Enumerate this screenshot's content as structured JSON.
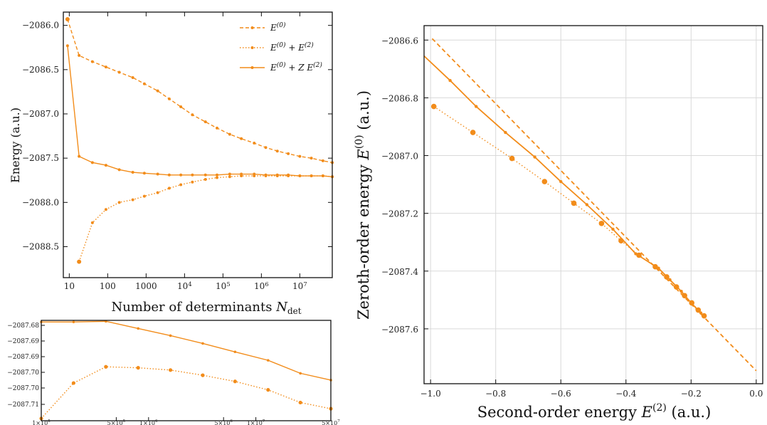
{
  "colors": {
    "series": "#F28C1A",
    "axis": "#111111",
    "grid": "#d9d9d9"
  },
  "chart_data": [
    {
      "id": "top-left",
      "type": "line",
      "xscale": "log",
      "xlabel_text": "Number of determinants ",
      "xlabel_sym": "N",
      "xlabel_sub": "det",
      "ylabel": "Energy (a.u.)",
      "xlim": [
        7,
        70000000
      ],
      "ylim": [
        -2088.85,
        -2085.85
      ],
      "xticks": [
        "10",
        "100",
        "1000",
        "10^4",
        "10^5",
        "10^6",
        "10^7"
      ],
      "yticks": [
        "−2086.0",
        "−2086.5",
        "−2087.0",
        "−2087.5",
        "−2088.0",
        "−2088.5"
      ],
      "legend": [
        {
          "text": "E^(0)",
          "style": "dashed"
        },
        {
          "text": "E^(0) + E^(2)",
          "style": "dotted"
        },
        {
          "text": "E^(0) + Z E^(2)",
          "style": "solid"
        }
      ],
      "x": [
        9,
        18,
        40,
        90,
        200,
        450,
        900,
        2000,
        4000,
        8000,
        16000,
        35000,
        70000,
        150000,
        300000,
        650000,
        1300000,
        2600000,
        5000000,
        10000000,
        20000000,
        40000000,
        70000000
      ],
      "series": [
        {
          "name": "E^(0)",
          "style": "dashed",
          "values": [
            -2085.93,
            -2086.34,
            -2086.41,
            -2086.47,
            -2086.53,
            -2086.59,
            -2086.66,
            -2086.74,
            -2086.83,
            -2086.92,
            -2087.01,
            -2087.09,
            -2087.16,
            -2087.23,
            -2087.28,
            -2087.33,
            -2087.38,
            -2087.42,
            -2087.45,
            -2087.48,
            -2087.5,
            -2087.53,
            -2087.55
          ]
        },
        {
          "name": "E^(0) + E^(2)",
          "style": "dotted",
          "values": [
            null,
            -2088.67,
            -2088.23,
            -2088.08,
            -2088.0,
            -2087.97,
            -2087.93,
            -2087.89,
            -2087.84,
            -2087.8,
            -2087.77,
            -2087.74,
            -2087.72,
            -2087.71,
            -2087.7,
            -2087.7,
            -2087.7,
            -2087.7,
            -2087.7,
            -2087.7,
            -2087.7,
            -2087.7,
            -2087.71
          ]
        },
        {
          "name": "E^(0) + Z E^(2)",
          "style": "solid",
          "values": [
            -2086.23,
            -2087.48,
            -2087.55,
            -2087.58,
            -2087.63,
            -2087.66,
            -2087.67,
            -2087.68,
            -2087.69,
            -2087.69,
            -2087.69,
            -2087.69,
            -2087.69,
            -2087.68,
            -2087.68,
            -2087.68,
            -2087.69,
            -2087.69,
            -2087.69,
            -2087.7,
            -2087.7,
            -2087.7,
            -2087.71
          ]
        }
      ]
    },
    {
      "id": "bottom-left",
      "type": "line",
      "xscale": "log",
      "xlim": [
        100000,
        50000000
      ],
      "ylim": [
        -2087.7104,
        -2087.6795
      ],
      "xticks": [
        "1×10^5",
        "5×10^5",
        "1×10^6",
        "5×10^6",
        "1×10^7",
        "5×10^7"
      ],
      "yticks": [
        "−2087.68",
        "−2087.69",
        "−2087.69",
        "−2087.70",
        "−2087.70",
        "−2087.71"
      ],
      "x": [
        100000,
        200000,
        400000,
        800000,
        1600000,
        3200000,
        6400000,
        13000000,
        26000000,
        50000000
      ],
      "series": [
        {
          "name": "E^(0) + Z E^(2)",
          "style": "solid",
          "values": [
            -2087.68,
            -2087.68,
            -2087.6798,
            -2087.682,
            -2087.6842,
            -2087.6866,
            -2087.6892,
            -2087.6918,
            -2087.6958,
            -2087.6979
          ]
        },
        {
          "name": "E^(0) + E^(2)",
          "style": "dotted",
          "values": [
            -2087.7097,
            -2087.6988,
            -2087.6938,
            -2087.6941,
            -2087.6948,
            -2087.6964,
            -2087.6983,
            -2087.7009,
            -2087.7048,
            -2087.7067
          ]
        }
      ]
    },
    {
      "id": "right",
      "type": "scatter",
      "xlabel_text": "Second-order energy ",
      "xlabel_sym": "E",
      "xlabel_sup": "(2)",
      "xlabel_unit": " (a.u.)",
      "ylabel_text": "Zeroth-order energy ",
      "ylabel_sym": "E",
      "ylabel_sup": "(0)",
      "ylabel_unit": " (a.u.)",
      "xlim": [
        -1.02,
        0.02
      ],
      "ylim": [
        -2087.79,
        -2086.55
      ],
      "grid": true,
      "xticks": [
        -1.0,
        -0.8,
        -0.6,
        -0.4,
        -0.2,
        0.0
      ],
      "xticklabels": [
        "−1.0",
        "−0.8",
        "−0.6",
        "−0.4",
        "−0.2",
        "0.0"
      ],
      "yticks": [
        -2086.6,
        -2086.8,
        -2087.0,
        -2087.2,
        -2087.4,
        -2087.6
      ],
      "yticklabels": [
        "−2086.6",
        "−2086.8",
        "−2087.0",
        "−2087.2",
        "−2087.4",
        "−2087.6"
      ],
      "dashed_line": {
        "x": [
          -0.995,
          0.0
        ],
        "y": [
          -2086.595,
          -2087.745
        ]
      },
      "solid_series": {
        "x": [
          -1.02,
          -0.94,
          -0.86,
          -0.77,
          -0.68,
          -0.6,
          -0.52,
          -0.44,
          -0.37,
          -0.3,
          -0.265,
          -0.23,
          -0.2,
          -0.17
        ],
        "y": [
          -2086.655,
          -2086.74,
          -2086.83,
          -2086.92,
          -2087.005,
          -2087.09,
          -2087.17,
          -2087.255,
          -2087.34,
          -2087.39,
          -2087.43,
          -2087.47,
          -2087.51,
          -2087.545
        ]
      },
      "dotted_series": {
        "x": [
          -0.99,
          -0.87,
          -0.75,
          -0.65,
          -0.56,
          -0.475,
          -0.415,
          -0.36,
          -0.31,
          -0.275,
          -0.245,
          -0.22,
          -0.198,
          -0.178,
          -0.16
        ],
        "y": [
          -2086.83,
          -2086.92,
          -2087.01,
          -2087.09,
          -2087.165,
          -2087.235,
          -2087.295,
          -2087.345,
          -2087.385,
          -2087.42,
          -2087.455,
          -2087.485,
          -2087.51,
          -2087.535,
          -2087.555
        ]
      }
    }
  ]
}
